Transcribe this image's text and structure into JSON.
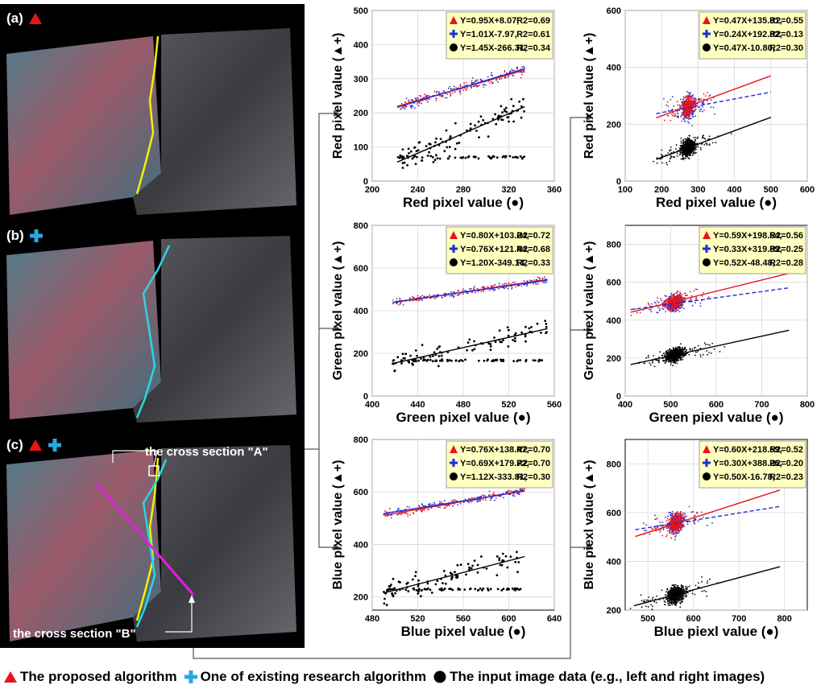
{
  "colors": {
    "red": "#e8141b",
    "blue": "#1b2fd6",
    "cyan": "#29a8e0",
    "black": "#000000",
    "yellow": "#f2f200",
    "magenta": "#e020e0",
    "eq_box": "#ffffc0",
    "grid": "#d8d8d8"
  },
  "images": [
    {
      "label": "(a)",
      "markers": [
        "red-triangle-icon"
      ]
    },
    {
      "label": "(b)",
      "markers": [
        "cyan-plus-icon"
      ]
    },
    {
      "label": "(c)",
      "markers": [
        "red-triangle-icon",
        "cyan-plus-icon"
      ],
      "section_a": "the cross section \"A\"",
      "section_b": "the cross section \"B\""
    }
  ],
  "legend": {
    "proposed": "The proposed algorithm",
    "existing": "One of existing research algorithm",
    "input": "The input image data (e.g., left and right images)"
  },
  "chart_data": [
    {
      "id": "a-red",
      "type": "scatter",
      "xlabel": "Red pixel value (●)",
      "ylabel": "Red pixel value (▲+)",
      "xlim": [
        200,
        360
      ],
      "xticks": [
        200,
        240,
        280,
        320,
        360
      ],
      "ylim": [
        0,
        500
      ],
      "yticks": [
        0,
        100,
        200,
        300,
        400,
        500
      ],
      "series": [
        {
          "name": "proposed",
          "equation": "Y=0.95X+8.07,",
          "r2": "R2=0.69",
          "slope": 0.95,
          "intercept": 8.07,
          "x_range": [
            222,
            334
          ],
          "noise": 14,
          "n": 130
        },
        {
          "name": "existing",
          "equation": "Y=1.01X-7.97,",
          "r2": "R2=0.61",
          "slope": 1.01,
          "intercept": -7.97,
          "x_range": [
            222,
            334
          ],
          "noise": 14,
          "n": 130
        },
        {
          "name": "input",
          "equation": "Y=1.45X-266.31,",
          "r2": "R2=0.34",
          "slope": 1.45,
          "intercept": -266.31,
          "x_range": [
            222,
            334
          ],
          "noise": 40,
          "n": 150
        }
      ]
    },
    {
      "id": "a-green",
      "type": "scatter",
      "xlabel": "Green pixel value (●)",
      "ylabel": "Green pixel value (▲+)",
      "xlim": [
        400,
        560
      ],
      "xticks": [
        400,
        440,
        480,
        520,
        560
      ],
      "ylim": [
        0,
        800
      ],
      "yticks": [
        0,
        200,
        400,
        600,
        800
      ],
      "series": [
        {
          "name": "proposed",
          "equation": "Y=0.80X+103.24,",
          "r2": "R2=0.72",
          "slope": 0.8,
          "intercept": 103.24,
          "x_range": [
            418,
            554
          ],
          "noise": 15,
          "n": 130
        },
        {
          "name": "existing",
          "equation": "Y=0.76X+121.44,",
          "r2": "R2=0.68",
          "slope": 0.76,
          "intercept": 121.44,
          "x_range": [
            418,
            554
          ],
          "noise": 15,
          "n": 130
        },
        {
          "name": "input",
          "equation": "Y=1.20X-349.14,",
          "r2": "R2=0.33",
          "slope": 1.2,
          "intercept": -349.14,
          "x_range": [
            418,
            554
          ],
          "noise": 45,
          "n": 150
        }
      ]
    },
    {
      "id": "a-blue",
      "type": "scatter",
      "xlabel": "Blue pixel value (●)",
      "ylabel": "Blue pixel value (▲+)",
      "xlim": [
        480,
        640
      ],
      "xticks": [
        480,
        520,
        560,
        600,
        640
      ],
      "ylim": [
        150,
        800
      ],
      "yticks": [
        200,
        400,
        600,
        800
      ],
      "series": [
        {
          "name": "proposed",
          "equation": "Y=0.76X+138.47,",
          "r2": "R2=0.70",
          "slope": 0.76,
          "intercept": 138.47,
          "x_range": [
            490,
            614
          ],
          "noise": 14,
          "n": 130
        },
        {
          "name": "existing",
          "equation": "Y=0.69X+179.72,",
          "r2": "R2=0.70",
          "slope": 0.69,
          "intercept": 179.72,
          "x_range": [
            490,
            614
          ],
          "noise": 14,
          "n": 130
        },
        {
          "name": "input",
          "equation": "Y=1.12X-333.81,",
          "r2": "R2=0.30",
          "slope": 1.12,
          "intercept": -333.81,
          "x_range": [
            490,
            614
          ],
          "noise": 45,
          "n": 150
        }
      ]
    },
    {
      "id": "b-red",
      "type": "scatter",
      "xlabel": "Red pixel value (●)",
      "ylabel": "Red pixel value (▲+)",
      "xlim": [
        100,
        600
      ],
      "xticks": [
        100,
        200,
        300,
        400,
        500,
        600
      ],
      "ylim": [
        0,
        600
      ],
      "yticks": [
        0,
        200,
        400,
        600
      ],
      "series": [
        {
          "name": "proposed",
          "equation": "Y=0.47X+135.31,",
          "r2": "R2=0.55",
          "slope": 0.47,
          "intercept": 135.31,
          "x_range": [
            185,
            500
          ],
          "noise": 35,
          "n": 320
        },
        {
          "name": "existing",
          "equation": "Y=0.24X+192.82,",
          "r2": "R2=0.13",
          "slope": 0.24,
          "intercept": 192.82,
          "x_range": [
            185,
            500
          ],
          "noise": 40,
          "n": 320
        },
        {
          "name": "input",
          "equation": "Y=0.47X-10.80,",
          "r2": "R2=0.30",
          "slope": 0.47,
          "intercept": -10.8,
          "x_range": [
            185,
            500
          ],
          "noise": 30,
          "n": 650
        }
      ]
    },
    {
      "id": "b-green",
      "type": "scatter",
      "xlabel": "Green piexl value (●)",
      "ylabel": "Green piexl value (▲+)",
      "xlim": [
        400,
        800
      ],
      "xticks": [
        400,
        500,
        600,
        700,
        800
      ],
      "ylim": [
        0,
        900
      ],
      "yticks": [
        0,
        200,
        400,
        600,
        800
      ],
      "series": [
        {
          "name": "proposed",
          "equation": "Y=0.59X+198.64,",
          "r2": "R2=0.56",
          "slope": 0.59,
          "intercept": 198.64,
          "x_range": [
            412,
            760
          ],
          "noise": 40,
          "n": 320
        },
        {
          "name": "existing",
          "equation": "Y=0.33X+319.89,",
          "r2": "R2=0.25",
          "slope": 0.33,
          "intercept": 319.89,
          "x_range": [
            412,
            760
          ],
          "noise": 40,
          "n": 320
        },
        {
          "name": "input",
          "equation": "Y=0.52X-48.48,",
          "r2": "R2=0.28",
          "slope": 0.52,
          "intercept": -48.48,
          "x_range": [
            412,
            760
          ],
          "noise": 35,
          "n": 650
        }
      ]
    },
    {
      "id": "b-blue",
      "type": "scatter",
      "xlabel": "Blue piexl value (●)",
      "ylabel": "Blue piexl value (▲+)",
      "xlim": [
        450,
        850
      ],
      "xticks": [
        500,
        600,
        700,
        800
      ],
      "ylim": [
        200,
        900
      ],
      "yticks": [
        200,
        400,
        600,
        800
      ],
      "series": [
        {
          "name": "proposed",
          "equation": "Y=0.60X+218.59,",
          "r2": "R2=0.52",
          "slope": 0.6,
          "intercept": 218.59,
          "x_range": [
            472,
            790
          ],
          "noise": 40,
          "n": 320
        },
        {
          "name": "existing",
          "equation": "Y=0.30X+388.26,",
          "r2": "R2=0.20",
          "slope": 0.3,
          "intercept": 388.26,
          "x_range": [
            472,
            790
          ],
          "noise": 40,
          "n": 320
        },
        {
          "name": "input",
          "equation": "Y=0.50X-16.78,",
          "r2": "R2=0.23",
          "slope": 0.5,
          "intercept": -16.78,
          "x_range": [
            472,
            790
          ],
          "noise": 35,
          "n": 650
        }
      ]
    }
  ]
}
